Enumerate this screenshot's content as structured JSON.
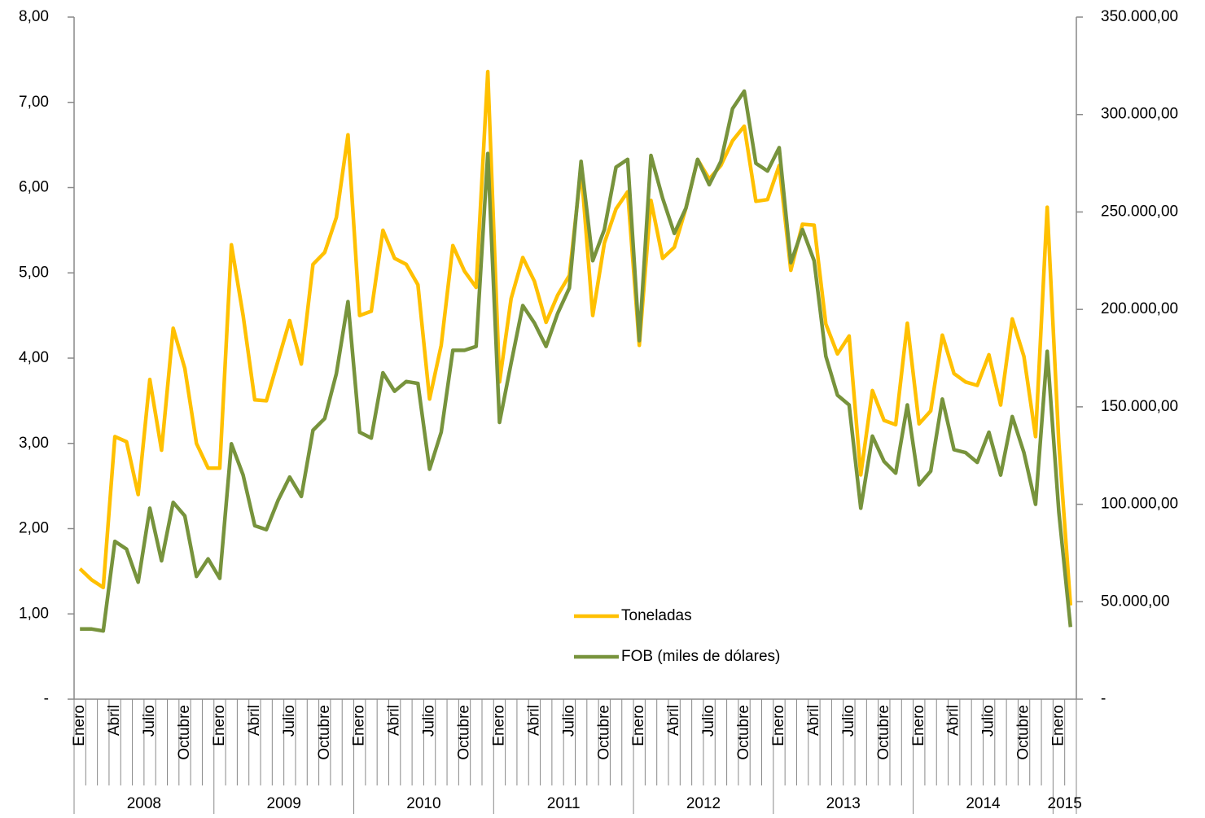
{
  "chart_data": {
    "type": "line",
    "categories": [
      "Enero",
      null,
      null,
      "Abril",
      null,
      null,
      "Julio",
      null,
      null,
      "Octubre",
      null,
      null,
      "Enero",
      null,
      null,
      "Abril",
      null,
      null,
      "Julio",
      null,
      null,
      "Octubre",
      null,
      null,
      "Enero",
      null,
      null,
      "Abril",
      null,
      null,
      "Julio",
      null,
      null,
      "Octubre",
      null,
      null,
      "Enero",
      null,
      null,
      "Abril",
      null,
      null,
      "Julio",
      null,
      null,
      "Octubre",
      null,
      null,
      "Enero",
      null,
      null,
      "Abril",
      null,
      null,
      "Julio",
      null,
      null,
      "Octubre",
      null,
      null,
      "Enero",
      null,
      null,
      "Abril",
      null,
      null,
      "Julio",
      null,
      null,
      "Octubre",
      null,
      null,
      "Enero",
      null,
      null,
      "Abril",
      null,
      null,
      "Julio",
      null,
      null,
      "Octubre",
      null,
      null,
      "Enero",
      null
    ],
    "years": [
      "2008",
      "2009",
      "2010",
      "2011",
      "2012",
      "2013",
      "2014",
      "2015"
    ],
    "ylim": [
      0,
      8
    ],
    "yticks": [
      {
        "value": 0,
        "label": "-"
      },
      {
        "value": 1,
        "label": "1,00"
      },
      {
        "value": 2,
        "label": "2,00"
      },
      {
        "value": 3,
        "label": "3,00"
      },
      {
        "value": 4,
        "label": "4,00"
      },
      {
        "value": 5,
        "label": "5,00"
      },
      {
        "value": 6,
        "label": "6,00"
      },
      {
        "value": 7,
        "label": "7,00"
      },
      {
        "value": 8,
        "label": "8,00"
      }
    ],
    "y2lim": [
      0,
      350000
    ],
    "y2ticks": [
      {
        "value": 0,
        "label": "-"
      },
      {
        "value": 50000,
        "label": "50.000,00"
      },
      {
        "value": 100000,
        "label": "100.000,00"
      },
      {
        "value": 150000,
        "label": "150.000,00"
      },
      {
        "value": 200000,
        "label": "200.000,00"
      },
      {
        "value": 250000,
        "label": "250.000,00"
      },
      {
        "value": 300000,
        "label": "300.000,00"
      },
      {
        "value": 350000,
        "label": "350.000,00"
      }
    ],
    "series": [
      {
        "name": "Toneladas",
        "color": "#FFC000",
        "axis": "y",
        "values": [
          1.53,
          1.4,
          1.31,
          3.08,
          3.02,
          2.4,
          3.75,
          2.92,
          4.35,
          3.88,
          3.0,
          2.71,
          2.71,
          5.33,
          4.5,
          3.51,
          3.5,
          3.97,
          4.44,
          3.93,
          5.1,
          5.24,
          5.65,
          6.62,
          4.5,
          4.55,
          5.5,
          5.17,
          5.1,
          4.86,
          3.52,
          4.15,
          5.32,
          5.02,
          4.83,
          7.36,
          3.72,
          4.7,
          5.18,
          4.9,
          4.42,
          4.74,
          4.97,
          6.22,
          4.5,
          5.35,
          5.75,
          5.95,
          4.15,
          5.85,
          5.17,
          5.3,
          5.76,
          6.33,
          6.1,
          6.26,
          6.55,
          6.72,
          5.84,
          5.86,
          6.26,
          5.03,
          5.57,
          5.56,
          4.4,
          4.05,
          4.26,
          2.63,
          3.62,
          3.27,
          3.22,
          4.41,
          3.23,
          3.38,
          4.27,
          3.82,
          3.72,
          3.68,
          4.04,
          3.45,
          4.46,
          4.02,
          3.08,
          5.77,
          3.0,
          1.1
        ]
      },
      {
        "name": "FOB (miles de dólares)",
        "color": "#77933C",
        "axis": "y2",
        "values": [
          36000,
          36000,
          35000,
          81000,
          77000,
          60000,
          98000,
          71000,
          101000,
          94000,
          63000,
          72000,
          62000,
          131000,
          115000,
          89000,
          87000,
          102000,
          114000,
          104000,
          138000,
          144000,
          167000,
          204000,
          137000,
          134000,
          167500,
          158000,
          163000,
          162000,
          118000,
          137000,
          179000,
          179000,
          181000,
          280000,
          142000,
          172500,
          202000,
          193000,
          181000,
          198000,
          211000,
          276000,
          225000,
          241000,
          273000,
          277000,
          184000,
          279000,
          257000,
          239000,
          252000,
          277000,
          264000,
          276000,
          303000,
          312000,
          275000,
          271000,
          283000,
          224000,
          241000,
          225000,
          176000,
          156000,
          151000,
          98000,
          135000,
          122000,
          116000,
          151000,
          110000,
          117000,
          154000,
          128000,
          126500,
          121500,
          137000,
          115000,
          145000,
          126500,
          100000,
          178500,
          96000,
          37000
        ]
      }
    ]
  }
}
